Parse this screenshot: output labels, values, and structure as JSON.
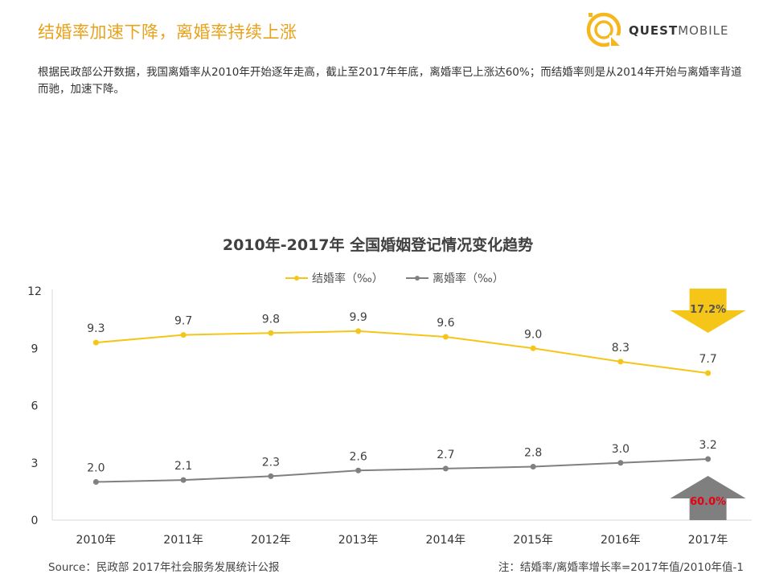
{
  "header": {
    "title": "结婚率加速下降，离婚率持续上涨",
    "logo_text_bold": "QUEST",
    "logo_text_light": "MOBILE",
    "brand_color": "#f5b71d"
  },
  "description": "根据民政部公开数据，我国离婚率从2010年开始逐年走高，截止至2017年年底，离婚率已上涨达60%；而结婚率则是从2014年开始与离婚率背道而驰，加速下降。",
  "chart_data": {
    "type": "line",
    "title": "2010年-2017年 全国婚姻登记情况变化趋势",
    "categories": [
      "2010年",
      "2011年",
      "2012年",
      "2013年",
      "2014年",
      "2015年",
      "2016年",
      "2017年"
    ],
    "series": [
      {
        "name": "结婚率（‰）",
        "values": [
          9.3,
          9.7,
          9.8,
          9.9,
          9.6,
          9.0,
          8.3,
          7.7
        ],
        "labels": [
          "9.3",
          "9.7",
          "9.8",
          "9.9",
          "9.6",
          "9.0",
          "8.3",
          "7.7"
        ],
        "color": "#f5c518"
      },
      {
        "name": "离婚率（‰）",
        "values": [
          2.0,
          2.1,
          2.3,
          2.6,
          2.7,
          2.8,
          3.0,
          3.2
        ],
        "labels": [
          "2.0",
          "2.1",
          "2.3",
          "2.6",
          "2.7",
          "2.8",
          "3.0",
          "3.2"
        ],
        "color": "#808080"
      }
    ],
    "yticks": [
      "0",
      "3",
      "6",
      "9",
      "12"
    ],
    "ylim": [
      0,
      12
    ],
    "grid": false,
    "legend_position": "top-center",
    "annotations": {
      "marriage_change": {
        "text": "17.2%",
        "direction": "down",
        "color": "#f5c518",
        "text_color": "#555555"
      },
      "divorce_change": {
        "text": "60.0%",
        "direction": "up",
        "color": "#7f7f7f",
        "text_color": "#e60012"
      }
    }
  },
  "footer": {
    "source": "Source：民政部 2017年社会服务发展统计公报",
    "note": "注：结婚率/离婚率增长率=2017年值/2010年值-1"
  }
}
